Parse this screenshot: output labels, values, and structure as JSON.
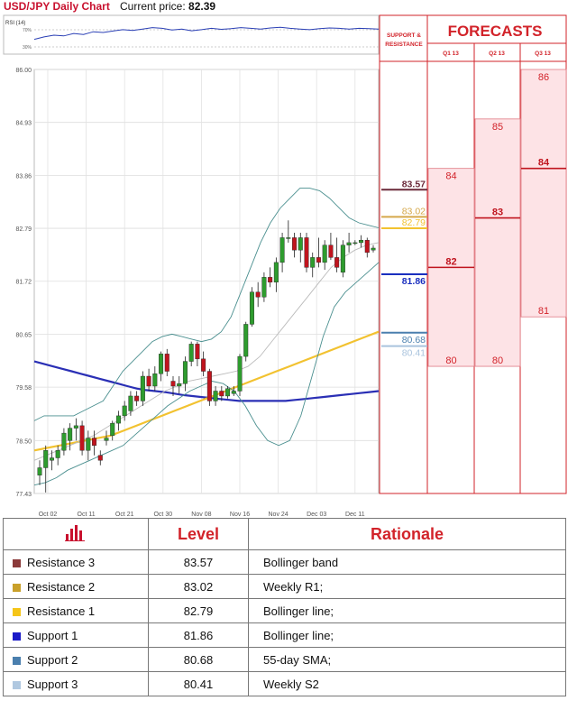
{
  "header": {
    "title": "USD/JPY Daily Chart",
    "price_label": "Current price:",
    "price_value": "82.39"
  },
  "rsi": {
    "label": "RSI (14)",
    "ticks": [
      "70%",
      "30%"
    ]
  },
  "forecast_panel": {
    "title": "FORECASTS",
    "sr_label_1": "SUPPORT &",
    "sr_label_2": "RESISTANCE",
    "quarters": [
      "Q1 13",
      "Q2 13",
      "Q3 13"
    ]
  },
  "chart_data": [
    {
      "type": "candlestick",
      "title": "USD/JPY Daily Chart",
      "ylim": [
        77.43,
        86.0
      ],
      "y_ticks": [
        "86.00",
        "84.93",
        "83.86",
        "82.79",
        "81.72",
        "80.65",
        "79.58",
        "78.50",
        "77.43"
      ],
      "x_ticks": [
        "Oct 02",
        "Oct 11",
        "Oct 21",
        "Oct 30",
        "Nov 08",
        "Nov 16",
        "Nov 24",
        "Dec 03",
        "Dec 11"
      ],
      "grid": true,
      "candles": [
        {
          "o": 77.8,
          "h": 78.1,
          "l": 77.6,
          "c": 77.95
        },
        {
          "o": 77.95,
          "h": 78.4,
          "l": 77.45,
          "c": 78.3
        },
        {
          "o": 78.1,
          "h": 78.3,
          "l": 77.9,
          "c": 78.15
        },
        {
          "o": 78.15,
          "h": 78.4,
          "l": 78.0,
          "c": 78.3
        },
        {
          "o": 78.3,
          "h": 78.75,
          "l": 78.2,
          "c": 78.65
        },
        {
          "o": 78.5,
          "h": 78.85,
          "l": 78.3,
          "c": 78.75
        },
        {
          "o": 78.75,
          "h": 78.95,
          "l": 78.5,
          "c": 78.8
        },
        {
          "o": 78.8,
          "h": 78.9,
          "l": 78.2,
          "c": 78.3
        },
        {
          "o": 78.3,
          "h": 78.7,
          "l": 78.1,
          "c": 78.55
        },
        {
          "o": 78.55,
          "h": 78.7,
          "l": 78.2,
          "c": 78.4
        },
        {
          "o": 78.2,
          "h": 78.3,
          "l": 78.0,
          "c": 78.1
        },
        {
          "o": 78.5,
          "h": 78.7,
          "l": 78.4,
          "c": 78.55
        },
        {
          "o": 78.6,
          "h": 78.9,
          "l": 78.5,
          "c": 78.85
        },
        {
          "o": 78.85,
          "h": 79.1,
          "l": 78.7,
          "c": 79.0
        },
        {
          "o": 79.0,
          "h": 79.3,
          "l": 78.9,
          "c": 79.2
        },
        {
          "o": 79.1,
          "h": 79.5,
          "l": 79.0,
          "c": 79.4
        },
        {
          "o": 79.4,
          "h": 79.5,
          "l": 79.2,
          "c": 79.3
        },
        {
          "o": 79.3,
          "h": 79.9,
          "l": 79.2,
          "c": 79.8
        },
        {
          "o": 79.8,
          "h": 79.95,
          "l": 79.5,
          "c": 79.6
        },
        {
          "o": 79.6,
          "h": 80.0,
          "l": 79.5,
          "c": 79.85
        },
        {
          "o": 79.85,
          "h": 80.3,
          "l": 79.7,
          "c": 80.25
        },
        {
          "o": 80.25,
          "h": 80.35,
          "l": 79.8,
          "c": 79.9
        },
        {
          "o": 79.7,
          "h": 79.8,
          "l": 79.4,
          "c": 79.6
        },
        {
          "o": 79.6,
          "h": 79.8,
          "l": 79.45,
          "c": 79.65
        },
        {
          "o": 79.65,
          "h": 80.2,
          "l": 79.5,
          "c": 80.1
        },
        {
          "o": 80.1,
          "h": 80.5,
          "l": 80.0,
          "c": 80.45
        },
        {
          "o": 80.45,
          "h": 80.5,
          "l": 80.0,
          "c": 80.15
        },
        {
          "o": 80.15,
          "h": 80.3,
          "l": 79.8,
          "c": 79.9
        },
        {
          "o": 79.9,
          "h": 79.95,
          "l": 79.2,
          "c": 79.3
        },
        {
          "o": 79.3,
          "h": 79.6,
          "l": 79.2,
          "c": 79.5
        },
        {
          "o": 79.5,
          "h": 79.6,
          "l": 79.3,
          "c": 79.4
        },
        {
          "o": 79.4,
          "h": 79.6,
          "l": 79.35,
          "c": 79.55
        },
        {
          "o": 79.45,
          "h": 79.6,
          "l": 79.4,
          "c": 79.5
        },
        {
          "o": 79.5,
          "h": 80.25,
          "l": 79.4,
          "c": 80.2
        },
        {
          "o": 80.2,
          "h": 80.9,
          "l": 80.1,
          "c": 80.85
        },
        {
          "o": 80.85,
          "h": 81.6,
          "l": 80.8,
          "c": 81.5
        },
        {
          "o": 81.5,
          "h": 81.7,
          "l": 81.2,
          "c": 81.4
        },
        {
          "o": 81.4,
          "h": 81.9,
          "l": 81.3,
          "c": 81.8
        },
        {
          "o": 81.8,
          "h": 82.0,
          "l": 81.6,
          "c": 81.7
        },
        {
          "o": 81.7,
          "h": 82.2,
          "l": 81.5,
          "c": 82.1
        },
        {
          "o": 82.1,
          "h": 82.7,
          "l": 81.9,
          "c": 82.6
        },
        {
          "o": 82.6,
          "h": 82.95,
          "l": 82.5,
          "c": 82.6
        },
        {
          "o": 82.6,
          "h": 82.7,
          "l": 82.2,
          "c": 82.35
        },
        {
          "o": 82.35,
          "h": 82.7,
          "l": 82.1,
          "c": 82.6
        },
        {
          "o": 82.6,
          "h": 82.7,
          "l": 81.9,
          "c": 82.0
        },
        {
          "o": 82.0,
          "h": 82.3,
          "l": 81.8,
          "c": 82.2
        },
        {
          "o": 82.2,
          "h": 82.6,
          "l": 82.0,
          "c": 82.1
        },
        {
          "o": 82.1,
          "h": 82.55,
          "l": 81.95,
          "c": 82.45
        },
        {
          "o": 82.45,
          "h": 82.7,
          "l": 82.15,
          "c": 82.2
        },
        {
          "o": 82.2,
          "h": 82.6,
          "l": 81.9,
          "c": 82.0
        },
        {
          "o": 81.9,
          "h": 82.55,
          "l": 81.8,
          "c": 82.45
        },
        {
          "o": 82.45,
          "h": 82.7,
          "l": 82.3,
          "c": 82.5
        },
        {
          "o": 82.5,
          "h": 82.55,
          "l": 82.45,
          "c": 82.5
        },
        {
          "o": 82.5,
          "h": 82.65,
          "l": 82.4,
          "c": 82.55
        },
        {
          "o": 82.55,
          "h": 82.6,
          "l": 82.2,
          "c": 82.3
        },
        {
          "o": 82.35,
          "h": 82.45,
          "l": 82.3,
          "c": 82.39
        }
      ],
      "series": [
        {
          "id": "sma",
          "color": "#2a2fb5",
          "values": [
            80.1,
            80.05,
            80.0,
            79.95,
            79.9,
            79.85,
            79.8,
            79.75,
            79.7,
            79.65,
            79.6,
            79.55,
            79.52,
            79.5,
            79.48,
            79.45,
            79.42,
            79.4,
            79.38,
            79.36,
            79.34,
            79.32,
            79.3,
            79.3,
            79.3,
            79.3,
            79.3,
            79.3,
            79.32,
            79.34,
            79.36,
            79.38,
            79.4,
            79.42,
            79.44,
            79.46,
            79.48,
            79.5
          ]
        },
        {
          "id": "wma",
          "color": "#f2c230",
          "values": [
            78.3,
            78.35,
            78.4,
            78.45,
            78.5,
            78.55,
            78.6,
            78.7,
            78.8,
            78.9,
            79.0,
            79.1,
            79.2,
            79.3,
            79.4,
            79.5,
            79.6,
            79.7,
            79.8,
            79.9,
            80.0,
            80.1,
            80.2,
            80.3,
            80.4,
            80.5,
            80.6,
            80.7
          ]
        },
        {
          "id": "bb_upper",
          "color": "#4a8f8f",
          "values": [
            78.9,
            79.0,
            79.0,
            79.0,
            79.0,
            79.1,
            79.2,
            79.3,
            79.6,
            79.9,
            80.1,
            80.3,
            80.5,
            80.6,
            80.65,
            80.6,
            80.55,
            80.5,
            80.55,
            80.7,
            81.0,
            81.5,
            82.0,
            82.5,
            82.9,
            83.2,
            83.4,
            83.6,
            83.6,
            83.55,
            83.4,
            83.2,
            83.0,
            82.9,
            82.85,
            82.8
          ]
        },
        {
          "id": "bb_lower",
          "color": "#4a8f8f",
          "values": [
            77.6,
            77.65,
            77.75,
            77.9,
            78.0,
            78.1,
            78.2,
            78.3,
            78.4,
            78.6,
            78.8,
            79.0,
            79.2,
            79.35,
            79.5,
            79.6,
            79.7,
            79.65,
            79.5,
            79.2,
            78.8,
            78.5,
            78.4,
            78.5,
            79.0,
            79.8,
            80.6,
            81.2,
            81.5,
            81.7,
            81.9,
            82.1
          ]
        },
        {
          "id": "bb_mid",
          "color": "#bbbbbb",
          "values": [
            78.1,
            78.2,
            78.3,
            78.4,
            78.5,
            78.6,
            78.75,
            78.9,
            79.05,
            79.2,
            79.35,
            79.5,
            79.6,
            79.7,
            79.75,
            79.8,
            79.85,
            79.9,
            80.0,
            80.2,
            80.5,
            80.8,
            81.1,
            81.4,
            81.7,
            82.0,
            82.2,
            82.35,
            82.45,
            82.5
          ]
        }
      ]
    },
    {
      "type": "line",
      "name": "RSI (14)",
      "ylim": [
        0,
        100
      ],
      "values": [
        38,
        45,
        50,
        48,
        55,
        52,
        60,
        58,
        62,
        66,
        64,
        68,
        72,
        70,
        65,
        68,
        63,
        66,
        70,
        67,
        69,
        72,
        70,
        68,
        71,
        73,
        70,
        68,
        66,
        69,
        71,
        70,
        68,
        70,
        69,
        68
      ]
    },
    {
      "type": "forecast",
      "ylim": [
        77.43,
        86.0
      ],
      "levels": [
        {
          "name": "Resistance 3",
          "value": 83.57,
          "label": "83.57",
          "color": "#6b2a3a"
        },
        {
          "name": "Resistance 2",
          "value": 83.02,
          "label": "83.02",
          "color": "#d5a84a"
        },
        {
          "name": "Resistance 1",
          "value": 82.79,
          "label": "82.79",
          "color": "#f2c230"
        },
        {
          "name": "Support 1",
          "value": 81.86,
          "label": "81.86",
          "color": "#1a2fbf"
        },
        {
          "name": "Support 2",
          "value": 80.68,
          "label": "80.68",
          "color": "#4a7fae"
        },
        {
          "name": "Support 3",
          "value": 80.41,
          "label": "80.41",
          "color": "#a9c3dd"
        }
      ],
      "quarters": [
        {
          "name": "Q1 13",
          "low": 80,
          "high": 84,
          "mean": 82,
          "low_label": "80",
          "high_label": "84",
          "mean_label": "82"
        },
        {
          "name": "Q2 13",
          "low": 80,
          "high": 85,
          "mean": 83,
          "low_label": "80",
          "high_label": "85",
          "mean_label": "83"
        },
        {
          "name": "Q3 13",
          "low": 81,
          "high": 86,
          "mean": 84,
          "low_label": "81",
          "high_label": "86",
          "mean_label": "84"
        }
      ]
    }
  ],
  "table": {
    "headers": {
      "level": "Level",
      "rationale": "Rationale"
    },
    "header_icon": "bar-chart-icon",
    "rows": [
      {
        "name": "Resistance 3",
        "level": "83.57",
        "rationale": "Bollinger band",
        "color": "#8b3a3a"
      },
      {
        "name": "Resistance 2",
        "level": "83.02",
        "rationale": "Weekly R1;",
        "color": "#c9a02a"
      },
      {
        "name": "Resistance 1",
        "level": "82.79",
        "rationale": "Bollinger line;",
        "color": "#f5c518"
      },
      {
        "name": "Support 1",
        "level": "81.86",
        "rationale": "Bollinger line;",
        "color": "#1a1ac8"
      },
      {
        "name": "Support 2",
        "level": "80.68",
        "rationale": "55-day SMA;",
        "color": "#4a7fae"
      },
      {
        "name": "Support 3",
        "level": "80.41",
        "rationale": "Weekly S2",
        "color": "#b0c8e0"
      }
    ]
  }
}
